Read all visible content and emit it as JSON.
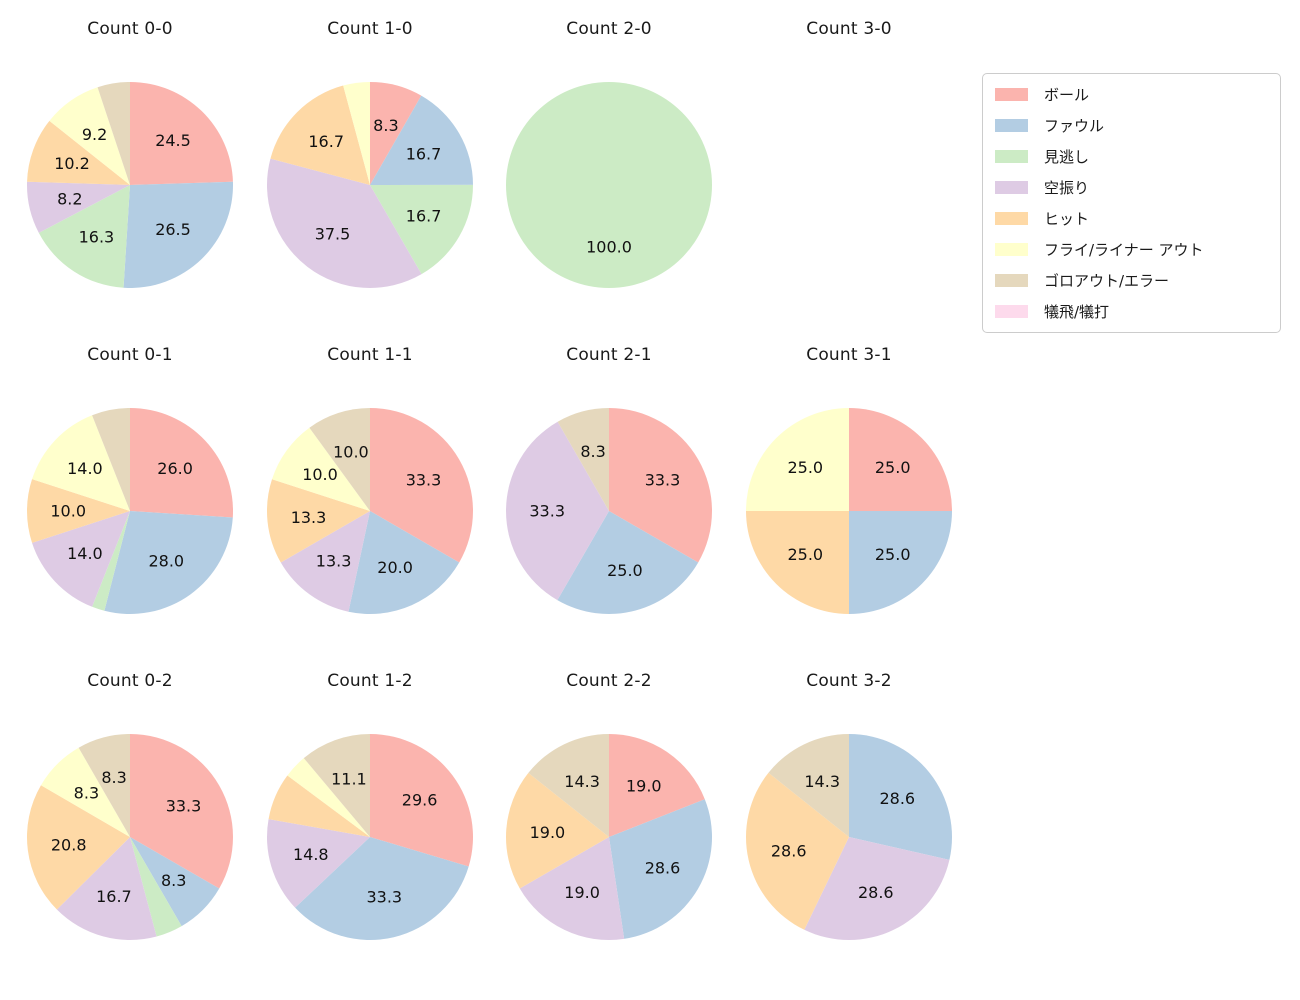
{
  "figure": {
    "background": "#ffffff"
  },
  "legend": {
    "items": [
      {
        "label": "ボール",
        "color": "#fbb4ae"
      },
      {
        "label": "ファウル",
        "color": "#b3cde3"
      },
      {
        "label": "見逃し",
        "color": "#ccebc5"
      },
      {
        "label": "空振り",
        "color": "#decbe4"
      },
      {
        "label": "ヒット",
        "color": "#fed9a6"
      },
      {
        "label": "フライ/ライナー アウト",
        "color": "#ffffcc"
      },
      {
        "label": "ゴロアウト/エラー",
        "color": "#e5d8bd"
      },
      {
        "label": "犠飛/犠打",
        "color": "#fddaec"
      }
    ]
  },
  "chart_data": [
    {
      "type": "pie",
      "title": "Count 0-0",
      "unit": "percent",
      "start_angle": "top",
      "direction": "clockwise",
      "slices": [
        {
          "category": "ボール",
          "value": 24.5,
          "label": "24.5"
        },
        {
          "category": "ファウル",
          "value": 26.5,
          "label": "26.5"
        },
        {
          "category": "見逃し",
          "value": 16.3,
          "label": "16.3"
        },
        {
          "category": "空振り",
          "value": 8.2,
          "label": "8.2"
        },
        {
          "category": "ヒット",
          "value": 10.2,
          "label": "10.2"
        },
        {
          "category": "フライ/ライナー アウト",
          "value": 9.2,
          "label": "9.2"
        },
        {
          "category": "ゴロアウト/エラー",
          "value": 5.1,
          "label": ""
        }
      ]
    },
    {
      "type": "pie",
      "title": "Count 1-0",
      "unit": "percent",
      "start_angle": "top",
      "direction": "clockwise",
      "slices": [
        {
          "category": "ボール",
          "value": 8.3,
          "label": "8.3"
        },
        {
          "category": "ファウル",
          "value": 16.7,
          "label": "16.7"
        },
        {
          "category": "見逃し",
          "value": 16.7,
          "label": "16.7"
        },
        {
          "category": "空振り",
          "value": 37.5,
          "label": "37.5"
        },
        {
          "category": "ヒット",
          "value": 16.7,
          "label": "16.7"
        },
        {
          "category": "フライ/ライナー アウト",
          "value": 4.2,
          "label": ""
        }
      ]
    },
    {
      "type": "pie",
      "title": "Count 2-0",
      "unit": "percent",
      "start_angle": "top",
      "direction": "clockwise",
      "slices": [
        {
          "category": "見逃し",
          "value": 100.0,
          "label": "100.0"
        }
      ]
    },
    {
      "type": "pie",
      "title": "Count 3-0",
      "unit": "percent",
      "start_angle": "top",
      "direction": "clockwise",
      "slices": []
    },
    {
      "type": "pie",
      "title": "Count 0-1",
      "unit": "percent",
      "start_angle": "top",
      "direction": "clockwise",
      "slices": [
        {
          "category": "ボール",
          "value": 26.0,
          "label": "26.0"
        },
        {
          "category": "ファウル",
          "value": 28.0,
          "label": "28.0"
        },
        {
          "category": "見逃し",
          "value": 2.0,
          "label": ""
        },
        {
          "category": "空振り",
          "value": 14.0,
          "label": "14.0"
        },
        {
          "category": "ヒット",
          "value": 10.0,
          "label": "10.0"
        },
        {
          "category": "フライ/ライナー アウト",
          "value": 14.0,
          "label": "14.0"
        },
        {
          "category": "ゴロアウト/エラー",
          "value": 6.0,
          "label": ""
        }
      ]
    },
    {
      "type": "pie",
      "title": "Count 1-1",
      "unit": "percent",
      "start_angle": "top",
      "direction": "clockwise",
      "slices": [
        {
          "category": "ボール",
          "value": 33.3,
          "label": "33.3"
        },
        {
          "category": "ファウル",
          "value": 20.0,
          "label": "20.0"
        },
        {
          "category": "空振り",
          "value": 13.3,
          "label": "13.3"
        },
        {
          "category": "ヒット",
          "value": 13.3,
          "label": "13.3"
        },
        {
          "category": "フライ/ライナー アウト",
          "value": 10.0,
          "label": "10.0"
        },
        {
          "category": "ゴロアウト/エラー",
          "value": 10.0,
          "label": "10.0"
        }
      ]
    },
    {
      "type": "pie",
      "title": "Count 2-1",
      "unit": "percent",
      "start_angle": "top",
      "direction": "clockwise",
      "slices": [
        {
          "category": "ボール",
          "value": 33.3,
          "label": "33.3"
        },
        {
          "category": "ファウル",
          "value": 25.0,
          "label": "25.0"
        },
        {
          "category": "空振り",
          "value": 33.3,
          "label": "33.3"
        },
        {
          "category": "ゴロアウト/エラー",
          "value": 8.3,
          "label": "8.3"
        }
      ]
    },
    {
      "type": "pie",
      "title": "Count 3-1",
      "unit": "percent",
      "start_angle": "top",
      "direction": "clockwise",
      "slices": [
        {
          "category": "ボール",
          "value": 25.0,
          "label": "25.0"
        },
        {
          "category": "ファウル",
          "value": 25.0,
          "label": "25.0"
        },
        {
          "category": "ヒット",
          "value": 25.0,
          "label": "25.0"
        },
        {
          "category": "フライ/ライナー アウト",
          "value": 25.0,
          "label": "25.0"
        }
      ]
    },
    {
      "type": "pie",
      "title": "Count 0-2",
      "unit": "percent",
      "start_angle": "top",
      "direction": "clockwise",
      "slices": [
        {
          "category": "ボール",
          "value": 33.3,
          "label": "33.3"
        },
        {
          "category": "ファウル",
          "value": 8.3,
          "label": "8.3"
        },
        {
          "category": "見逃し",
          "value": 4.2,
          "label": ""
        },
        {
          "category": "空振り",
          "value": 16.7,
          "label": "16.7"
        },
        {
          "category": "ヒット",
          "value": 20.8,
          "label": "20.8"
        },
        {
          "category": "フライ/ライナー アウト",
          "value": 8.3,
          "label": "8.3"
        },
        {
          "category": "ゴロアウト/エラー",
          "value": 8.3,
          "label": "8.3"
        }
      ]
    },
    {
      "type": "pie",
      "title": "Count 1-2",
      "unit": "percent",
      "start_angle": "top",
      "direction": "clockwise",
      "slices": [
        {
          "category": "ボール",
          "value": 29.6,
          "label": "29.6"
        },
        {
          "category": "ファウル",
          "value": 33.3,
          "label": "33.3"
        },
        {
          "category": "空振り",
          "value": 14.8,
          "label": "14.8"
        },
        {
          "category": "ヒット",
          "value": 7.4,
          "label": ""
        },
        {
          "category": "フライ/ライナー アウト",
          "value": 3.7,
          "label": ""
        },
        {
          "category": "ゴロアウト/エラー",
          "value": 11.1,
          "label": "11.1"
        }
      ]
    },
    {
      "type": "pie",
      "title": "Count 2-2",
      "unit": "percent",
      "start_angle": "top",
      "direction": "clockwise",
      "slices": [
        {
          "category": "ボール",
          "value": 19.0,
          "label": "19.0"
        },
        {
          "category": "ファウル",
          "value": 28.6,
          "label": "28.6"
        },
        {
          "category": "空振り",
          "value": 19.0,
          "label": "19.0"
        },
        {
          "category": "ヒット",
          "value": 19.0,
          "label": "19.0"
        },
        {
          "category": "ゴロアウト/エラー",
          "value": 14.3,
          "label": "14.3"
        }
      ]
    },
    {
      "type": "pie",
      "title": "Count 3-2",
      "unit": "percent",
      "start_angle": "top",
      "direction": "clockwise",
      "slices": [
        {
          "category": "ファウル",
          "value": 28.6,
          "label": "28.6"
        },
        {
          "category": "空振り",
          "value": 28.6,
          "label": "28.6"
        },
        {
          "category": "ヒット",
          "value": 28.6,
          "label": "28.6"
        },
        {
          "category": "ゴロアウト/エラー",
          "value": 14.3,
          "label": "14.3"
        }
      ]
    }
  ]
}
